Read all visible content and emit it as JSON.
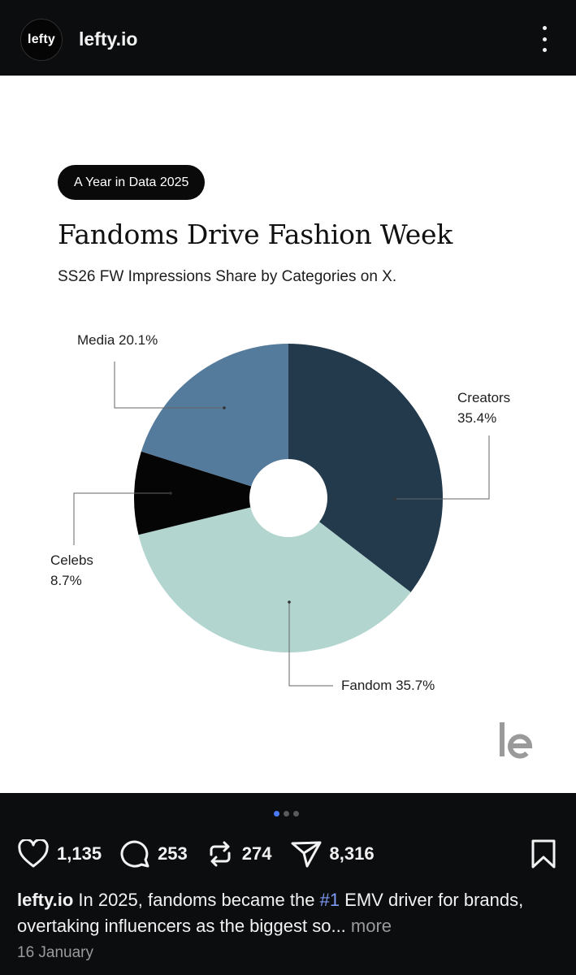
{
  "header": {
    "avatar_text": "lefty",
    "account_name": "lefty.io",
    "menu_icon": "more-vertical-icon"
  },
  "post": {
    "tag": "A Year in Data 2025",
    "title": "Fandoms Drive Fashion Week",
    "subtitle": "SS26 FW Impressions Share by Categories on X.",
    "labels": {
      "media": "Media 20.1%",
      "creators_name": "Creators",
      "creators_value": "35.4%",
      "celebs_name": "Celebs",
      "celebs_value": "8.7%",
      "fandom": "Fandom 35.7%"
    },
    "logo_icon": "lefty-logo"
  },
  "chart_data": {
    "type": "pie",
    "variant": "donut",
    "title": "Fandoms Drive Fashion Week",
    "subtitle": "SS26 FW Impressions Share by Categories on X.",
    "categories": [
      "Creators",
      "Fandom",
      "Celebs",
      "Media"
    ],
    "values": [
      35.4,
      35.7,
      8.7,
      20.1
    ],
    "unit": "%",
    "colors": [
      "#233a4d",
      "#b3d5cf",
      "#050505",
      "#557b9c"
    ],
    "start": "12 o'clock, clockwise",
    "legend": "none (callout labels)"
  },
  "footer": {
    "carousel": {
      "count": 3,
      "active": 0
    },
    "actions": {
      "likes": "1,135",
      "comments": "253",
      "reposts": "274",
      "shares": "8,316"
    },
    "icons": [
      "heart-icon",
      "comment-icon",
      "repost-icon",
      "share-icon",
      "bookmark-icon"
    ],
    "caption": {
      "user": "lefty.io",
      "text_before": " In 2025, fandoms became the ",
      "hashtag": "#1",
      "text_after": " EMV driver for brands, overtaking influencers as the biggest so...",
      "more": " more"
    },
    "date": "16 January"
  },
  "colors": {
    "background_dark": "#0c0d0f",
    "hashtag": "#7e9cf5",
    "carousel_active": "#4a7bf7"
  }
}
